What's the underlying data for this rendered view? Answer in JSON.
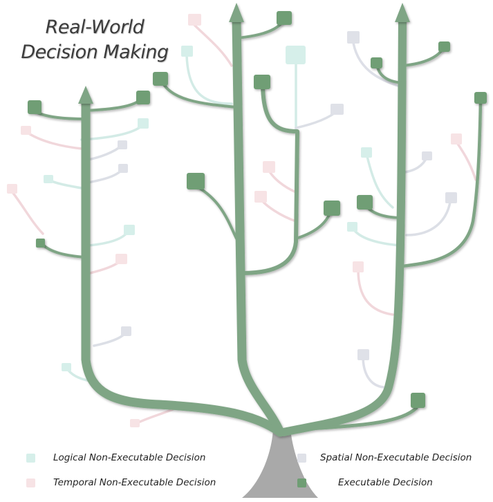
{
  "title": {
    "line1": "Real-World",
    "line2": "Decision Making"
  },
  "legend": [
    {
      "key": "logical",
      "label": "Logical Non-Executable Decision",
      "color": "#d6efea"
    },
    {
      "key": "spatial",
      "label": "Spatial Non-Executable Decision",
      "color": "#dfe1e8"
    },
    {
      "key": "temporal",
      "label": "Temporal Non-Executable Decision",
      "color": "#f7e3e5"
    },
    {
      "key": "executable",
      "label": "Executable Decision",
      "color": "#6f9e74"
    }
  ],
  "colors": {
    "trunk": "#a9a9a9",
    "branch": "#7fa585",
    "branch_dark": "#5f8a66",
    "logical_line": "#cfe9e4",
    "spatial_line": "#d9dce4",
    "temporal_line": "#f0d3d8"
  }
}
